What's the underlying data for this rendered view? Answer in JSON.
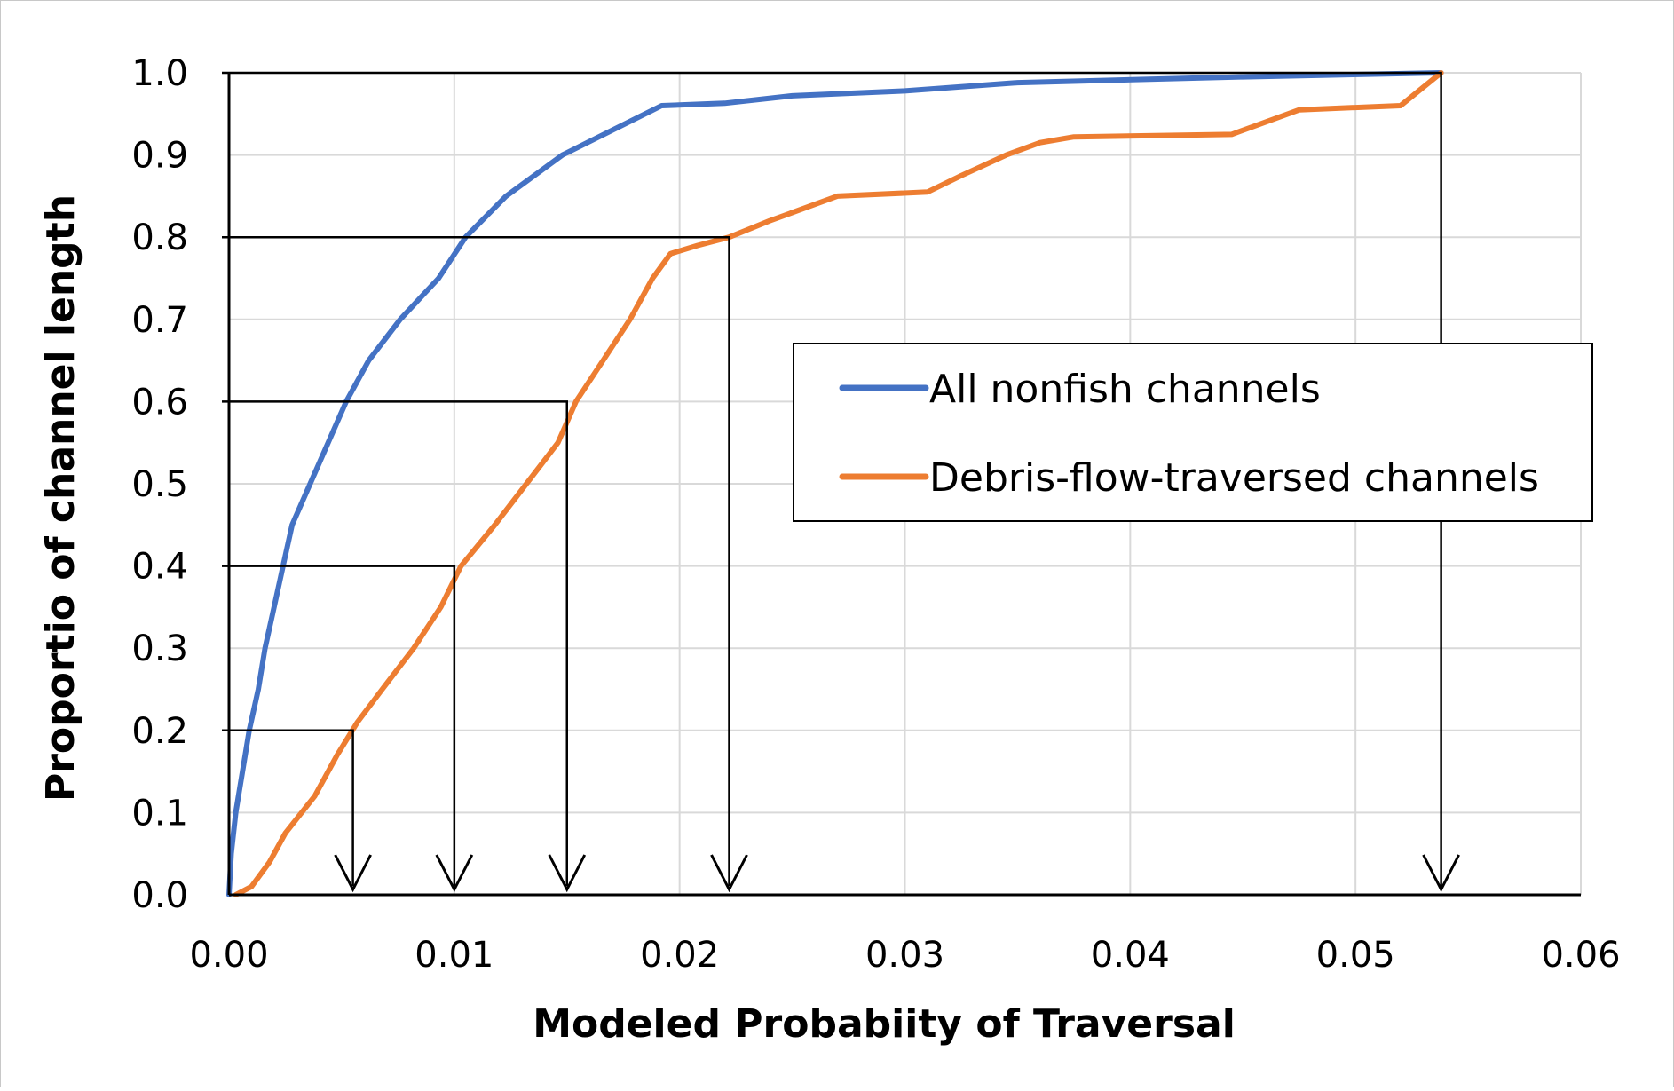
{
  "chart_data": {
    "type": "line",
    "title": "",
    "xlabel": "Modeled Probabiity of Traversal",
    "ylabel": "Proportio of channel length",
    "xlim": [
      0,
      0.06
    ],
    "ylim": [
      0,
      1.0
    ],
    "x_ticks": [
      "0.00",
      "0.01",
      "0.02",
      "0.03",
      "0.04",
      "0.05",
      "0.06"
    ],
    "y_ticks": [
      "0.0",
      "0.1",
      "0.2",
      "0.3",
      "0.4",
      "0.5",
      "0.6",
      "0.7",
      "0.8",
      "0.9",
      "1.0"
    ],
    "grid": true,
    "legend_position": "right",
    "series": [
      {
        "name": "All nonfish channels",
        "color": "#4472C4",
        "points": [
          [
            0.0,
            0.0
          ],
          [
            0.0001,
            0.05
          ],
          [
            0.0003,
            0.1
          ],
          [
            0.0006,
            0.15
          ],
          [
            0.0009,
            0.2
          ],
          [
            0.0013,
            0.25
          ],
          [
            0.0016,
            0.3
          ],
          [
            0.002,
            0.35
          ],
          [
            0.0024,
            0.4
          ],
          [
            0.0028,
            0.45
          ],
          [
            0.0036,
            0.5
          ],
          [
            0.0044,
            0.55
          ],
          [
            0.0052,
            0.6
          ],
          [
            0.0062,
            0.65
          ],
          [
            0.0076,
            0.7
          ],
          [
            0.0093,
            0.75
          ],
          [
            0.0105,
            0.8
          ],
          [
            0.0123,
            0.85
          ],
          [
            0.0148,
            0.9
          ],
          [
            0.017,
            0.93
          ],
          [
            0.0192,
            0.96
          ],
          [
            0.022,
            0.963
          ],
          [
            0.025,
            0.972
          ],
          [
            0.03,
            0.978
          ],
          [
            0.035,
            0.988
          ],
          [
            0.045,
            0.995
          ],
          [
            0.0538,
            1.0
          ]
        ]
      },
      {
        "name": "Debris-flow-traversed channels",
        "color": "#ED7D31",
        "points": [
          [
            0.0003,
            0.0
          ],
          [
            0.001,
            0.01
          ],
          [
            0.0018,
            0.04
          ],
          [
            0.0025,
            0.075
          ],
          [
            0.0038,
            0.12
          ],
          [
            0.0048,
            0.17
          ],
          [
            0.0057,
            0.21
          ],
          [
            0.0068,
            0.25
          ],
          [
            0.0082,
            0.3
          ],
          [
            0.0094,
            0.35
          ],
          [
            0.0103,
            0.4
          ],
          [
            0.0118,
            0.45
          ],
          [
            0.0132,
            0.5
          ],
          [
            0.0146,
            0.55
          ],
          [
            0.0154,
            0.6
          ],
          [
            0.0166,
            0.65
          ],
          [
            0.0178,
            0.7
          ],
          [
            0.0188,
            0.75
          ],
          [
            0.0196,
            0.78
          ],
          [
            0.0208,
            0.79
          ],
          [
            0.0222,
            0.8
          ],
          [
            0.024,
            0.82
          ],
          [
            0.027,
            0.85
          ],
          [
            0.031,
            0.855
          ],
          [
            0.0325,
            0.875
          ],
          [
            0.0345,
            0.9
          ],
          [
            0.036,
            0.915
          ],
          [
            0.0375,
            0.922
          ],
          [
            0.0445,
            0.925
          ],
          [
            0.0455,
            0.935
          ],
          [
            0.0475,
            0.955
          ],
          [
            0.052,
            0.96
          ],
          [
            0.0538,
            1.0
          ]
        ]
      }
    ],
    "annotations": [
      {
        "y": 0.2,
        "x": 0.0055
      },
      {
        "y": 0.4,
        "x": 0.01
      },
      {
        "y": 0.6,
        "x": 0.015
      },
      {
        "y": 0.8,
        "x": 0.0222
      },
      {
        "y": 1.0,
        "x": 0.0538
      }
    ]
  }
}
